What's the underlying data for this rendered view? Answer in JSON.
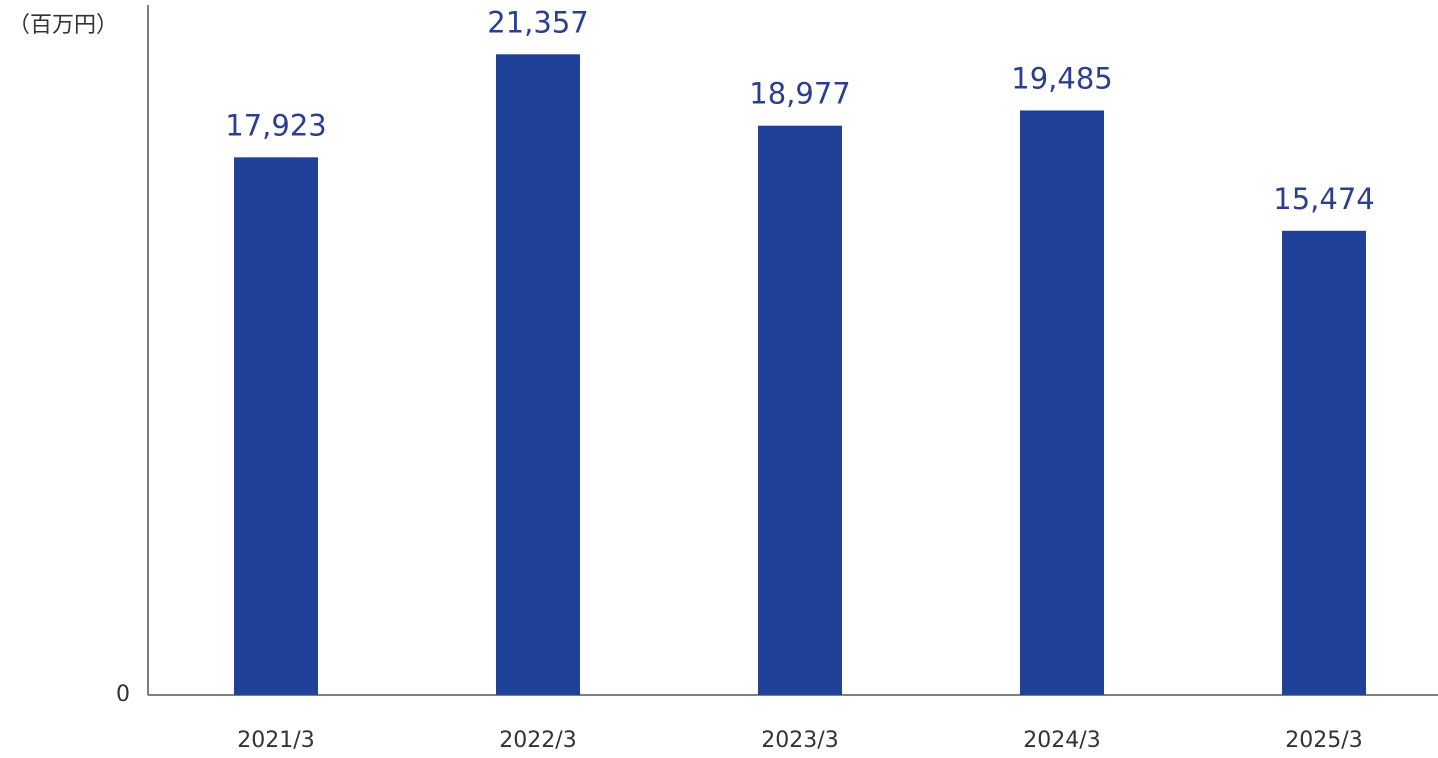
{
  "chart_data": {
    "type": "bar",
    "y_label": "（百万円）",
    "categories": [
      "2021/3",
      "2022/3",
      "2023/3",
      "2024/3",
      "2025/3"
    ],
    "values": [
      17923,
      21357,
      18977,
      19485,
      15474
    ],
    "value_labels": [
      "17,923",
      "21,357",
      "18,977",
      "19,485",
      "15,474"
    ],
    "color": "#1f4197",
    "ylim": [
      0,
      23000
    ],
    "yticks": [
      0
    ]
  }
}
